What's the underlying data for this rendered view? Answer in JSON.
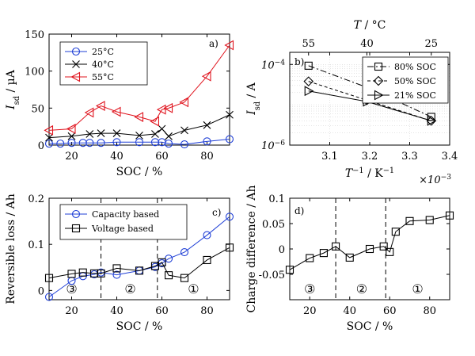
{
  "chart_data": [
    {
      "panel": "a)",
      "type": "line",
      "xlabel": "SOC / %",
      "ylabel": "I_sd / µA",
      "ylabel_parts": {
        "main": "I",
        "sub": "sd",
        "rest": " / µA"
      },
      "xlim": [
        10,
        90
      ],
      "ylim": [
        0,
        150
      ],
      "xticks": [
        20,
        40,
        60,
        80
      ],
      "yticks": [
        0,
        50,
        100,
        150
      ],
      "legend_position": "top-left",
      "series": [
        {
          "name": "25°C",
          "color": "#1f3fd6",
          "marker": "circle",
          "x": [
            10,
            15,
            20,
            25,
            28,
            33,
            40,
            50,
            57,
            60,
            63,
            70,
            80,
            90
          ],
          "y": [
            2,
            2,
            3,
            3,
            3,
            3,
            4,
            4,
            4,
            4,
            2,
            1,
            5,
            8
          ]
        },
        {
          "name": "40°C",
          "color": "#000000",
          "marker": "x",
          "x": [
            10,
            20,
            28,
            33,
            40,
            50,
            57,
            60,
            63,
            70,
            80,
            90
          ],
          "y": [
            10,
            12,
            15,
            16,
            16,
            13,
            15,
            22,
            12,
            20,
            27,
            41
          ]
        },
        {
          "name": "55°C",
          "color": "#e0141e",
          "marker": "triangle-left",
          "x": [
            10,
            20,
            28,
            33,
            40,
            50,
            57,
            60,
            63,
            70,
            80,
            90
          ],
          "y": [
            20,
            22,
            44,
            53,
            45,
            38,
            32,
            48,
            50,
            58,
            93,
            135
          ]
        }
      ]
    },
    {
      "panel": "b)",
      "type": "line",
      "xlabel": "T^-1 / K^-1",
      "xlabel_parts": {
        "main": "T",
        "sup": "−1",
        "rest": " / K",
        "sup2": "−1"
      },
      "x_multiplier": "×10^-3",
      "x_multiplier_parts": {
        "main": "×10",
        "sup": "−3"
      },
      "ylabel": "I_sd / A",
      "ylabel_parts": {
        "main": "I",
        "sub": "sd",
        "rest": " / A"
      },
      "top_xlabel": "T / °C",
      "top_xlabel_parts": {
        "main": "T",
        "rest": " / °C"
      },
      "top_xticks": [
        {
          "label": "55",
          "x": 3.047
        },
        {
          "label": "40",
          "x": 3.193
        },
        {
          "label": "25",
          "x": 3.354
        }
      ],
      "xlim": [
        3.0,
        3.4
      ],
      "ylim_log10": [
        -6,
        -3.7
      ],
      "xticks": [
        "3.1",
        "3.2",
        "3.3",
        "3.4"
      ],
      "yticks_log10": [
        -6,
        -4
      ],
      "ytick_labels": [
        {
          "main": "10",
          "sup": "−6"
        },
        {
          "main": "10",
          "sup": "−4"
        }
      ],
      "scale_y": "log",
      "grid": true,
      "legend_position": "top-right",
      "series": [
        {
          "name": "80% SOC",
          "color": "#000000",
          "marker": "square",
          "dash": "8,3,2,3",
          "x": [
            3.047,
            3.193,
            3.354
          ],
          "y": [
            9.3e-05,
            2.7e-05,
            5e-06
          ]
        },
        {
          "name": "50% SOC",
          "color": "#000000",
          "marker": "diamond",
          "dash": "4,3",
          "x": [
            3.047,
            3.193,
            3.354
          ],
          "y": [
            3.8e-05,
            1.3e-05,
            4e-06
          ]
        },
        {
          "name": "21% SOC",
          "color": "#000000",
          "marker": "triangle-right",
          "dash": "",
          "x": [
            3.047,
            3.193,
            3.354
          ],
          "y": [
            2.2e-05,
            1.2e-05,
            4e-06
          ]
        }
      ]
    },
    {
      "panel": "c)",
      "type": "line",
      "xlabel": "SOC / %",
      "ylabel": "Reversible loss / Ah",
      "xlim": [
        10,
        90
      ],
      "ylim": [
        -0.02,
        0.2
      ],
      "xticks": [
        20,
        40,
        60,
        80
      ],
      "yticks": [
        "0",
        "0.1",
        "0.2"
      ],
      "legend_position": "top-left",
      "region_lines": [
        33,
        58
      ],
      "region_labels": [
        {
          "text": "③",
          "x": 20
        },
        {
          "text": "②",
          "x": 46
        },
        {
          "text": "①",
          "x": 74
        }
      ],
      "series": [
        {
          "name": "Capacity based",
          "color": "#1f3fd6",
          "marker": "circle",
          "x": [
            10,
            20,
            25,
            30,
            33,
            40,
            50,
            57,
            60,
            63,
            70,
            80,
            90
          ],
          "y": [
            -0.014,
            0.021,
            0.031,
            0.035,
            0.039,
            0.034,
            0.043,
            0.051,
            0.059,
            0.069,
            0.083,
            0.12,
            0.16
          ]
        },
        {
          "name": "Voltage based",
          "color": "#000000",
          "marker": "square",
          "x": [
            10,
            20,
            25,
            30,
            33,
            40,
            50,
            57,
            60,
            63,
            70,
            80,
            90
          ],
          "y": [
            0.027,
            0.036,
            0.039,
            0.037,
            0.037,
            0.048,
            0.043,
            0.053,
            0.061,
            0.033,
            0.027,
            0.066,
            0.093
          ]
        }
      ]
    },
    {
      "panel": "d)",
      "type": "line",
      "xlabel": "SOC / %",
      "ylabel": "Charge difference / Ah",
      "xlim": [
        10,
        90
      ],
      "ylim": [
        -0.1,
        0.1
      ],
      "xticks": [
        20,
        40,
        60,
        80
      ],
      "yticks": [
        "-0.05",
        "0",
        "0.05",
        "0.1"
      ],
      "region_lines": [
        33,
        58
      ],
      "region_labels": [
        {
          "text": "③",
          "x": 20
        },
        {
          "text": "②",
          "x": 46
        },
        {
          "text": "①",
          "x": 74
        }
      ],
      "series": [
        {
          "name": "",
          "color": "#000000",
          "marker": "square",
          "x": [
            10,
            20,
            27,
            33,
            40,
            50,
            57,
            60,
            63,
            70,
            80,
            90
          ],
          "y": [
            -0.041,
            -0.018,
            -0.008,
            0.005,
            -0.017,
            0.0,
            0.005,
            -0.006,
            0.034,
            0.055,
            0.057,
            0.066
          ]
        }
      ]
    }
  ]
}
